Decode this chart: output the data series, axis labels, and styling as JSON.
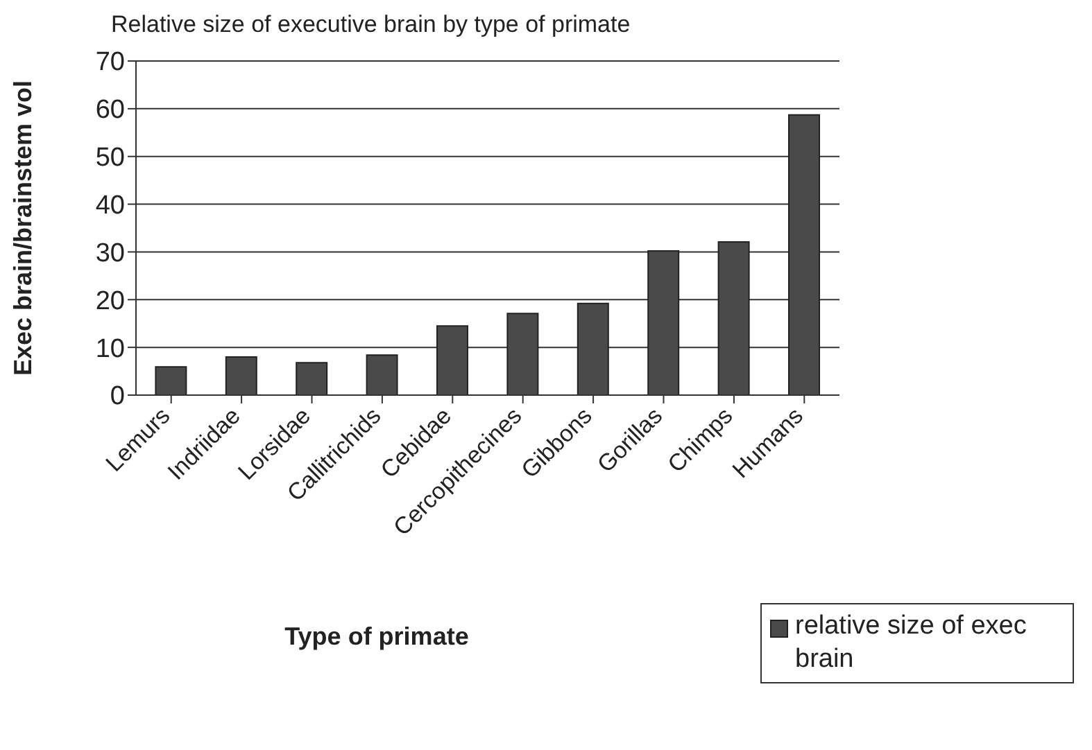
{
  "chart_data": {
    "type": "bar",
    "title": "Relative size of executive brain by type of primate",
    "xlabel": "Type of primate",
    "ylabel": "Exec brain/brainstem vol",
    "categories": [
      "Lemurs",
      "Indriidae",
      "Lorsidae",
      "Callitrichids",
      "Cebidae",
      "Cercopithecines",
      "Gibbons",
      "Gorillas",
      "Chimps",
      "Humans"
    ],
    "series": [
      {
        "name": "relative size of exec brain",
        "color": "#4a4a4a",
        "values": [
          5.9,
          8.0,
          6.8,
          8.4,
          14.5,
          17.1,
          19.2,
          30.2,
          32.1,
          58.7
        ]
      }
    ],
    "ylim": [
      0,
      70
    ],
    "yticks": [
      0,
      10,
      20,
      30,
      40,
      50,
      60,
      70
    ],
    "grid": "y",
    "legend": "bottom right"
  }
}
